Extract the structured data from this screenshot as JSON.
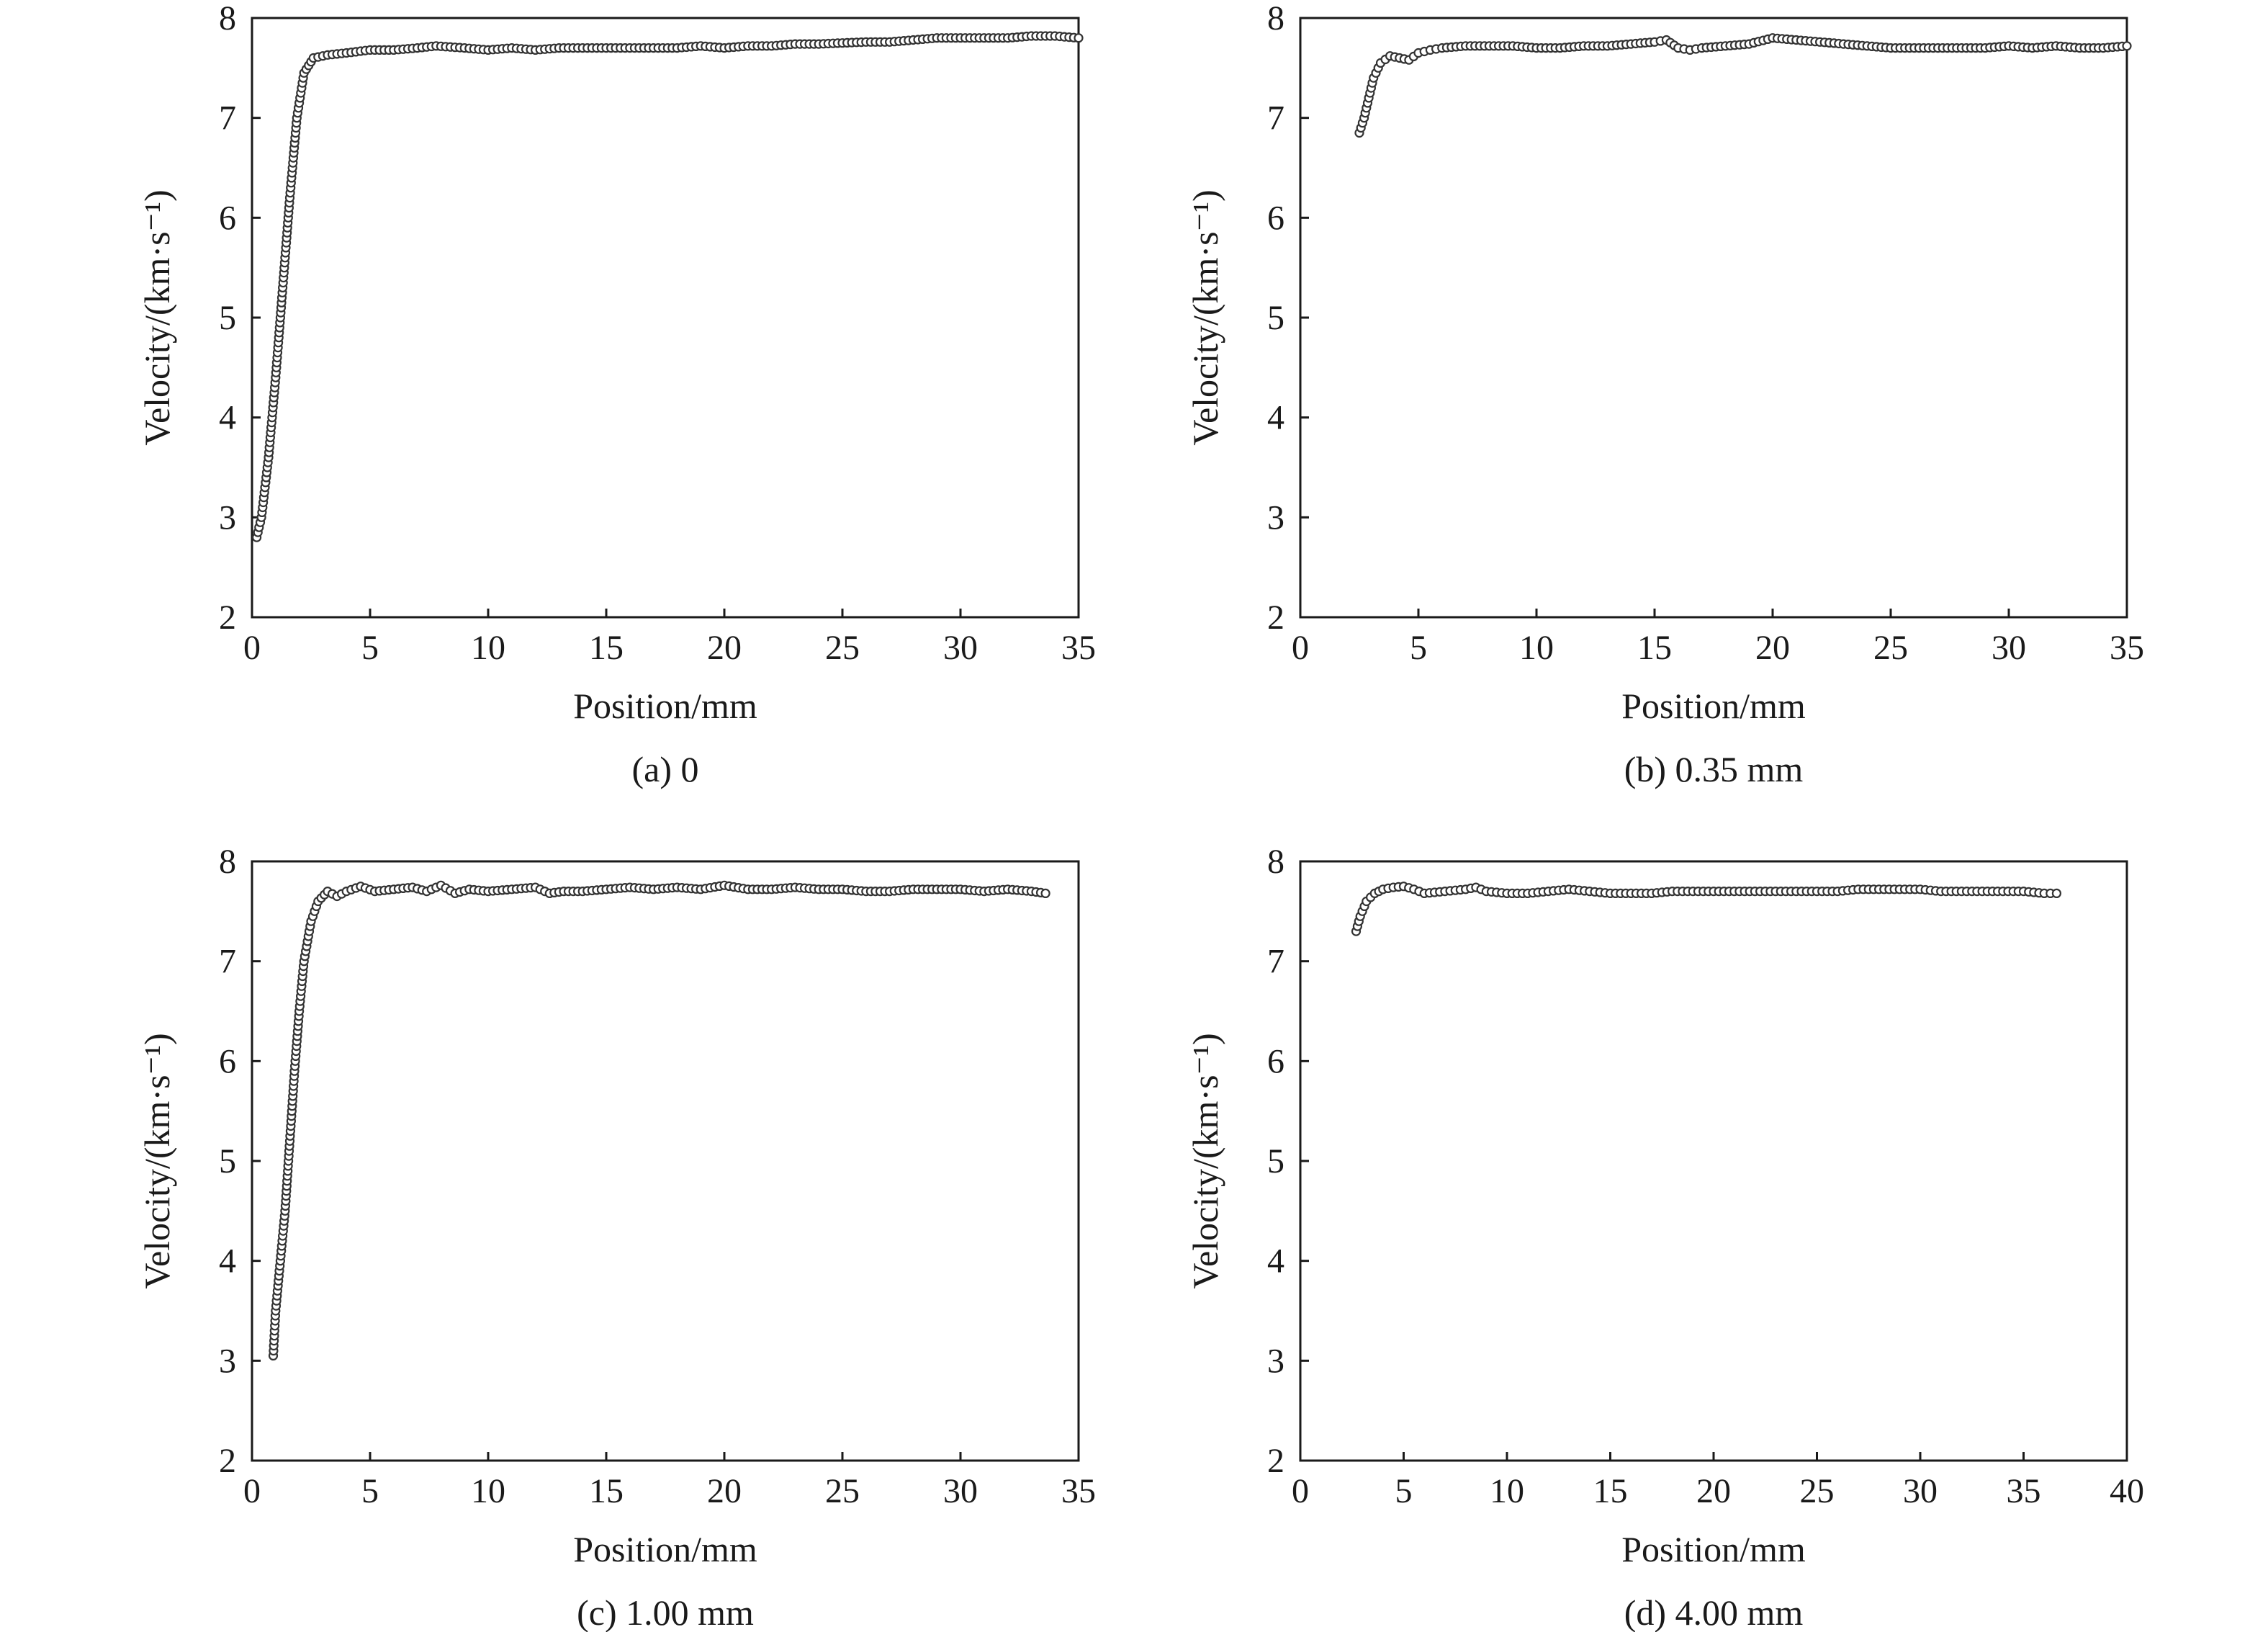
{
  "chart_data": [
    {
      "type": "line",
      "caption": "(a) 0",
      "xlabel": "Position/mm",
      "ylabel": "Velocity/(km·s⁻¹)",
      "xlim": [
        0,
        35
      ],
      "ylim": [
        2,
        8
      ],
      "xticks": [
        0,
        5,
        10,
        15,
        20,
        25,
        30,
        35
      ],
      "yticks": [
        2,
        3,
        4,
        5,
        6,
        7,
        8
      ],
      "grid": false,
      "series": [
        {
          "x": [
            0.2,
            0.4,
            0.7,
            1.0,
            1.3,
            1.6,
            1.9,
            2.2,
            2.6,
            3.2,
            4.0,
            5.0,
            6.0,
            7.0,
            7.8,
            9.0,
            10.0,
            11.0,
            12.0,
            13.0,
            14.0,
            15.0,
            16.0,
            17.0,
            18.0,
            19.0,
            20.0,
            21.0,
            22.0,
            23.0,
            24.0,
            25.0,
            26.0,
            27.0,
            28.0,
            29.0,
            30.0,
            31.0,
            32.0,
            33.0,
            34.0,
            35.0
          ],
          "y": [
            2.8,
            3.0,
            3.6,
            4.4,
            5.3,
            6.2,
            7.0,
            7.45,
            7.6,
            7.63,
            7.65,
            7.68,
            7.68,
            7.7,
            7.72,
            7.7,
            7.68,
            7.7,
            7.68,
            7.7,
            7.7,
            7.7,
            7.7,
            7.7,
            7.7,
            7.72,
            7.7,
            7.72,
            7.72,
            7.74,
            7.74,
            7.75,
            7.76,
            7.76,
            7.78,
            7.8,
            7.8,
            7.8,
            7.8,
            7.82,
            7.82,
            7.8
          ]
        }
      ]
    },
    {
      "type": "line",
      "caption": "(b) 0.35 mm",
      "xlabel": "Position/mm",
      "ylabel": "Velocity/(km·s⁻¹)",
      "xlim": [
        0,
        35
      ],
      "ylim": [
        2,
        8
      ],
      "xticks": [
        0,
        5,
        10,
        15,
        20,
        25,
        30,
        35
      ],
      "yticks": [
        2,
        3,
        4,
        5,
        6,
        7,
        8
      ],
      "grid": false,
      "series": [
        {
          "x": [
            2.5,
            2.7,
            2.9,
            3.1,
            3.4,
            3.8,
            4.2,
            4.6,
            5.0,
            5.5,
            6.0,
            7.0,
            8.0,
            9.0,
            10.0,
            11.0,
            12.0,
            13.0,
            14.0,
            15.0,
            15.5,
            16.0,
            16.5,
            17.0,
            18.0,
            19.0,
            20.0,
            21.0,
            22.0,
            23.0,
            24.0,
            25.0,
            26.0,
            27.0,
            28.0,
            29.0,
            30.0,
            31.0,
            32.0,
            33.0,
            34.0,
            35.0
          ],
          "y": [
            6.85,
            7.0,
            7.2,
            7.4,
            7.55,
            7.62,
            7.6,
            7.58,
            7.65,
            7.68,
            7.7,
            7.72,
            7.72,
            7.72,
            7.7,
            7.7,
            7.72,
            7.72,
            7.74,
            7.76,
            7.78,
            7.7,
            7.68,
            7.7,
            7.72,
            7.74,
            7.8,
            7.78,
            7.76,
            7.74,
            7.72,
            7.7,
            7.7,
            7.7,
            7.7,
            7.7,
            7.72,
            7.7,
            7.72,
            7.7,
            7.7,
            7.72
          ]
        }
      ]
    },
    {
      "type": "line",
      "caption": "(c) 1.00 mm",
      "xlabel": "Position/mm",
      "ylabel": "Velocity/(km·s⁻¹)",
      "xlim": [
        0,
        35
      ],
      "ylim": [
        2,
        8
      ],
      "xticks": [
        0,
        5,
        10,
        15,
        20,
        25,
        30,
        35
      ],
      "yticks": [
        2,
        3,
        4,
        5,
        6,
        7,
        8
      ],
      "grid": false,
      "series": [
        {
          "x": [
            0.9,
            1.0,
            1.2,
            1.4,
            1.6,
            1.8,
            2.0,
            2.2,
            2.5,
            2.8,
            3.2,
            3.6,
            4.0,
            4.6,
            5.2,
            6.0,
            6.8,
            7.4,
            8.0,
            8.6,
            9.2,
            10.0,
            11.0,
            12.0,
            12.6,
            13.2,
            14.0,
            15.0,
            16.0,
            17.0,
            18.0,
            19.0,
            20.0,
            21.0,
            22.0,
            23.0,
            24.0,
            25.0,
            26.0,
            27.0,
            28.0,
            29.0,
            30.0,
            31.0,
            32.0,
            33.0,
            33.6
          ],
          "y": [
            3.05,
            3.5,
            4.0,
            4.5,
            5.2,
            5.9,
            6.5,
            7.0,
            7.4,
            7.6,
            7.7,
            7.65,
            7.7,
            7.75,
            7.7,
            7.72,
            7.74,
            7.7,
            7.76,
            7.68,
            7.72,
            7.7,
            7.72,
            7.74,
            7.68,
            7.7,
            7.7,
            7.72,
            7.74,
            7.72,
            7.74,
            7.72,
            7.76,
            7.72,
            7.72,
            7.74,
            7.72,
            7.72,
            7.7,
            7.7,
            7.72,
            7.72,
            7.72,
            7.7,
            7.72,
            7.7,
            7.68
          ]
        }
      ]
    },
    {
      "type": "line",
      "caption": "(d) 4.00 mm",
      "xlabel": "Position/mm",
      "ylabel": "Velocity/(km·s⁻¹)",
      "xlim": [
        0,
        40
      ],
      "ylim": [
        2,
        8
      ],
      "xticks": [
        0,
        5,
        10,
        15,
        20,
        25,
        30,
        35,
        40
      ],
      "yticks": [
        2,
        3,
        4,
        5,
        6,
        7,
        8
      ],
      "grid": false,
      "series": [
        {
          "x": [
            2.7,
            2.9,
            3.2,
            3.6,
            4.0,
            4.5,
            5.0,
            5.5,
            6.0,
            7.0,
            8.0,
            8.5,
            9.0,
            10.0,
            11.0,
            12.0,
            13.0,
            14.0,
            15.0,
            16.0,
            17.0,
            18.0,
            19.0,
            20.0,
            21.0,
            22.0,
            23.0,
            24.0,
            25.0,
            26.0,
            27.0,
            28.0,
            29.0,
            30.0,
            31.0,
            32.0,
            33.0,
            34.0,
            35.0,
            36.0,
            36.6
          ],
          "y": [
            7.3,
            7.45,
            7.6,
            7.68,
            7.72,
            7.74,
            7.75,
            7.72,
            7.68,
            7.7,
            7.72,
            7.74,
            7.7,
            7.68,
            7.68,
            7.7,
            7.72,
            7.7,
            7.68,
            7.68,
            7.68,
            7.7,
            7.7,
            7.7,
            7.7,
            7.7,
            7.7,
            7.7,
            7.7,
            7.7,
            7.72,
            7.72,
            7.72,
            7.72,
            7.7,
            7.7,
            7.7,
            7.7,
            7.7,
            7.68,
            7.68
          ]
        }
      ]
    }
  ]
}
